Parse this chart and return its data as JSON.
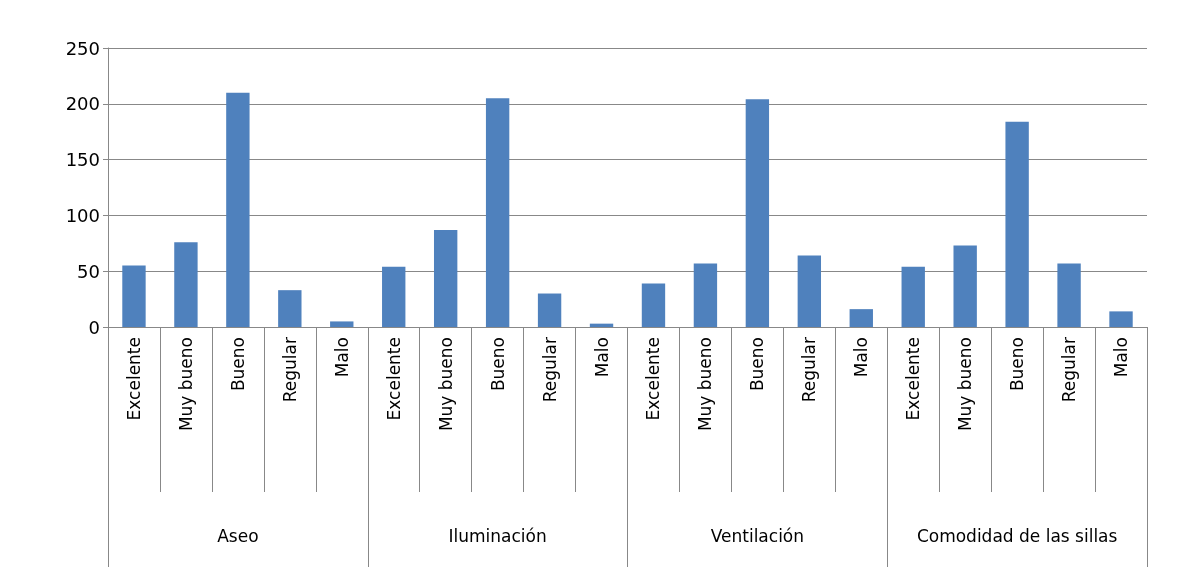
{
  "chart_data": {
    "type": "bar",
    "categories": [
      "Excelente",
      "Muy bueno",
      "Bueno",
      "Regular",
      "Malo",
      "Excelente",
      "Muy bueno",
      "Bueno",
      "Regular",
      "Malo",
      "Excelente",
      "Muy bueno",
      "Bueno",
      "Regular",
      "Malo",
      "Excelente",
      "Muy bueno",
      "Bueno",
      "Regular",
      "Malo"
    ],
    "values": [
      55,
      76,
      210,
      33,
      5,
      54,
      87,
      205,
      30,
      3,
      39,
      57,
      204,
      64,
      16,
      54,
      73,
      184,
      57,
      14
    ],
    "color": "#4f81bd",
    "annotations": [
      "Aseo",
      "Iluminación",
      "Ventilación",
      "Comodidad de las sillas"
    ],
    "ylim": [
      0,
      250
    ],
    "yticks": [
      0,
      50,
      100,
      150,
      200,
      250
    ],
    "grid": "y"
  }
}
